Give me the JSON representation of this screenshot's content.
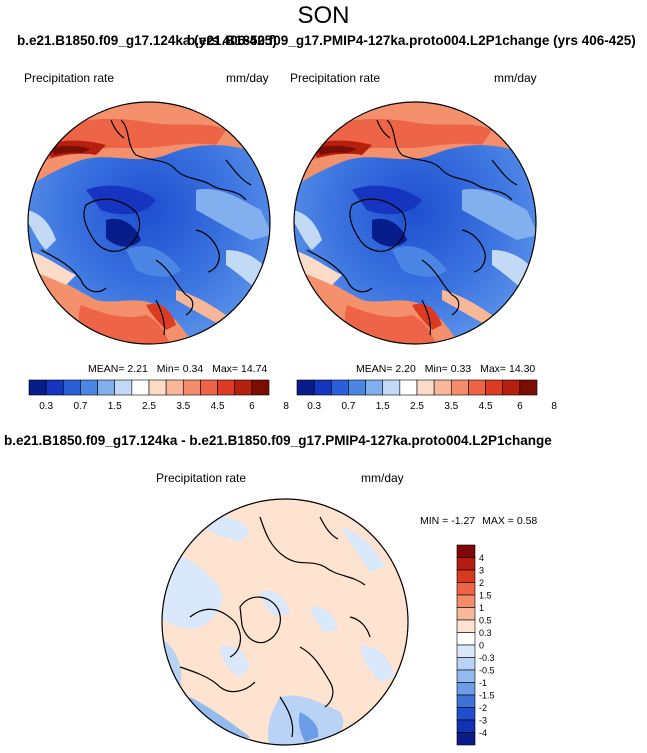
{
  "figure": {
    "season": "SON",
    "title_left": "b.e21.B1850.f09_g17.124ka (yrs 406-425)",
    "title_right": "b.e21.B1850.f09_g17.PMIP4-127ka.proto004.L2P1change (yrs 406-425)",
    "diff_title": "b.e21.B1850.f09_g17.124ka - b.e21.B1850.f09_g17.PMIP4-127ka.proto004.L2P1change"
  },
  "panels": [
    {
      "variable": "Precipitation rate",
      "units": "mm/day",
      "stats": {
        "mean_label": "MEAN=",
        "mean": "2.21",
        "min_label": "Min=",
        "min": "0.34",
        "max_label": "Max=",
        "max": "14.74"
      }
    },
    {
      "variable": "Precipitation rate",
      "units": "mm/day",
      "stats": {
        "mean_label": "MEAN=",
        "mean": "2.20",
        "min_label": "Min=",
        "min": "0.33",
        "max_label": "Max=",
        "max": "14.30"
      }
    }
  ],
  "diff_panel": {
    "variable": "Precipitation rate",
    "units": "mm/day",
    "stats": {
      "min_label": "MIN =",
      "min": "-1.27",
      "max_label": "MAX =",
      "max": "0.58"
    }
  },
  "colorbar_main": {
    "colors": [
      "#081d8c",
      "#1535c0",
      "#2b5fd8",
      "#4b86e4",
      "#82b0ee",
      "#c2daf6",
      "#ffffff",
      "#fcdcc8",
      "#f9b79a",
      "#f48c6b",
      "#ee6446",
      "#dd3b21",
      "#b51f0d",
      "#7a0e04"
    ],
    "tick_labels": [
      "0.3",
      "0.7",
      "1.5",
      "2.5",
      "3.5",
      "4.5",
      "6",
      "8"
    ]
  },
  "colorbar_diff": {
    "colors": [
      "#80060a",
      "#b51c10",
      "#d83a1f",
      "#ee6446",
      "#f48c6b",
      "#f9b79a",
      "#fde3d0",
      "#ffffff",
      "#d9e8fa",
      "#b8d3f5",
      "#94bbef",
      "#6d9de7",
      "#3d72dc",
      "#1f4fd0",
      "#1231b4",
      "#091c88"
    ],
    "tick_labels": [
      "4",
      "3",
      "2",
      "1.5",
      "1",
      "0.5",
      "0.3",
      "0",
      "-0.3",
      "-0.5",
      "-1",
      "-1.5",
      "-2",
      "-3",
      "-4"
    ]
  }
}
